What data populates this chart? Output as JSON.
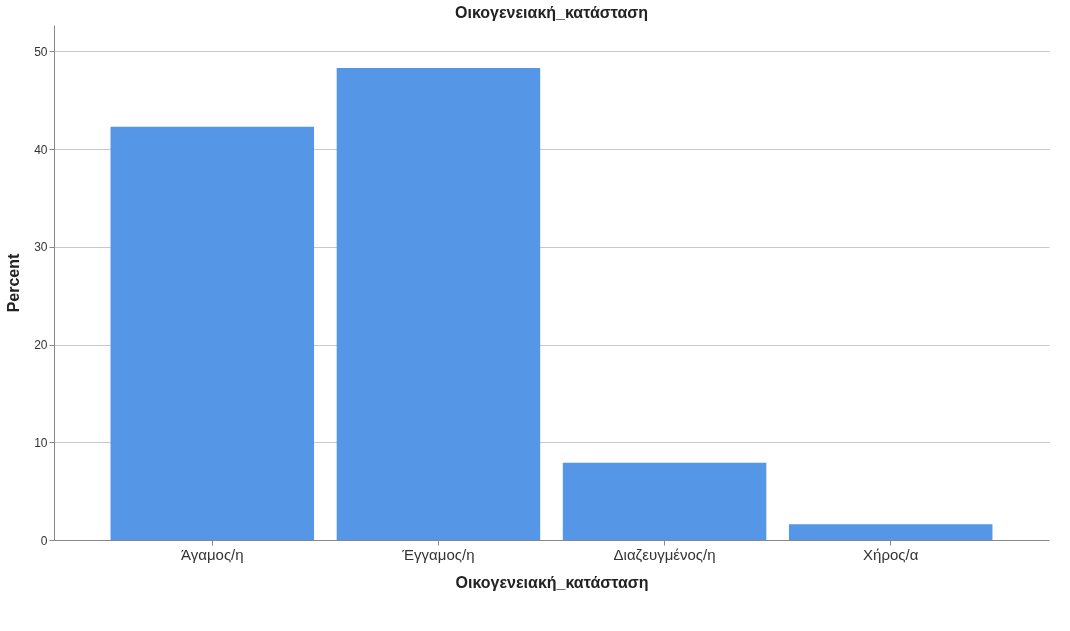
{
  "chart_data": {
    "type": "bar",
    "title": "Οικογενειακή_κατάσταση",
    "xlabel": "Οικογενειακή_κατάσταση",
    "ylabel": "Percent",
    "categories": [
      "Άγαμος/η",
      "Έγγαμος/η",
      "Διαζευγμένος/η",
      "Χήρος/α"
    ],
    "values": [
      42.3,
      48.3,
      7.9,
      1.6
    ],
    "color": "#5596e6",
    "ylim": [
      0,
      52.7
    ],
    "yticks": [
      0,
      10,
      20,
      30,
      40,
      50
    ],
    "grid": "y"
  }
}
